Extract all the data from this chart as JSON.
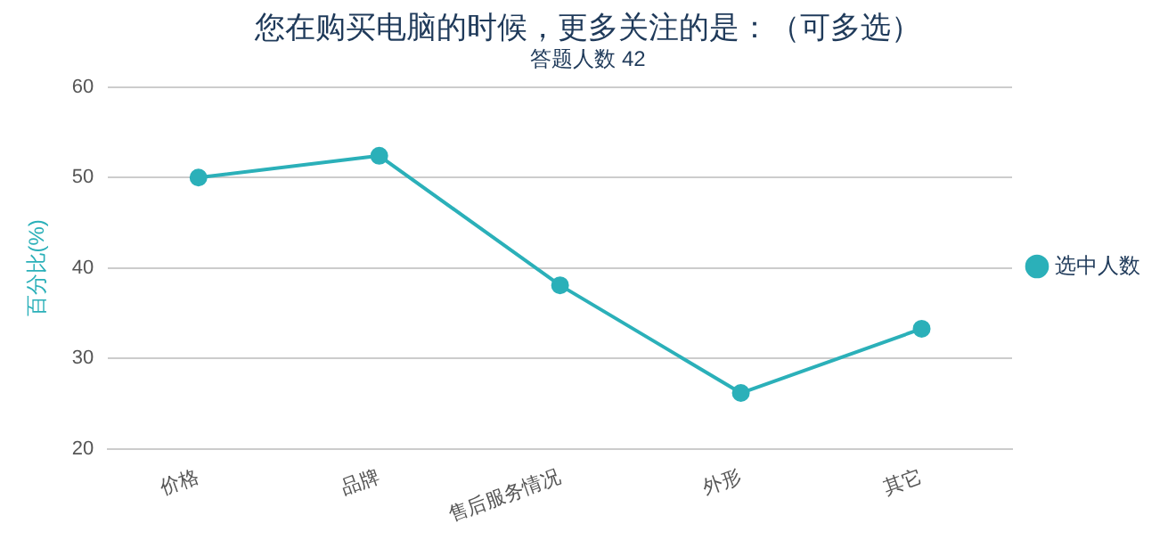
{
  "chart_data": {
    "type": "line",
    "title": "您在购买电脑的时候，更多关注的是：（可多选）",
    "subtitle": "答题人数 42",
    "ylabel": "百分比(%)",
    "categories": [
      "价格",
      "品牌",
      "售后服务情况",
      "外形",
      "其它"
    ],
    "series": [
      {
        "name": "选中人数",
        "color": "#2bb0b9",
        "values": [
          50.0,
          52.4,
          38.1,
          26.2,
          33.3
        ]
      }
    ],
    "ylim": [
      20,
      60
    ],
    "yticks": [
      20,
      30,
      40,
      50,
      60
    ],
    "grid": "y",
    "legend": "right",
    "marker": "circle",
    "line_style": "solid"
  }
}
